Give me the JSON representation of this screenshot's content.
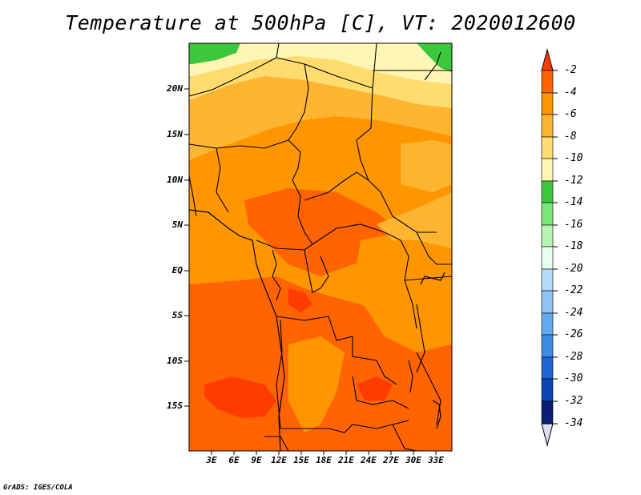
{
  "title": "Temperature at 500hPa [C], VT: 2020012600",
  "credit": "GrADS: IGES/COLA",
  "lat_labels": [
    "20N",
    "15N",
    "10N",
    "5N",
    "EQ",
    "5S",
    "10S",
    "15S"
  ],
  "lon_labels": [
    "3E",
    "6E",
    "9E",
    "12E",
    "15E",
    "18E",
    "21E",
    "24E",
    "27E",
    "30E",
    "33E"
  ],
  "colorbar": {
    "labels": [
      "-2",
      "-4",
      "-6",
      "-8",
      "-10",
      "-12",
      "-14",
      "-16",
      "-18",
      "-20",
      "-22",
      "-24",
      "-26",
      "-28",
      "-30",
      "-32",
      "-34"
    ],
    "colors": [
      "#ff3c00",
      "#ff6400",
      "#ff9600",
      "#ffb432",
      "#ffdc6e",
      "#fff5b4",
      "#3cc83c",
      "#78e678",
      "#b4f5b4",
      "#e6fff0",
      "#b4dcfa",
      "#8cc3f5",
      "#64aaf0",
      "#3c8ce6",
      "#1e64d2",
      "#0a46b4",
      "#0a1e78",
      "#dcdcf5"
    ]
  },
  "colors": {
    "yellow": "#fff5b4",
    "lightorange": "#ffdc6e",
    "orange1": "#ffb432",
    "orange2": "#ff9600",
    "orange3": "#ff6400",
    "red": "#ff3c00",
    "green": "#3cc83c"
  }
}
